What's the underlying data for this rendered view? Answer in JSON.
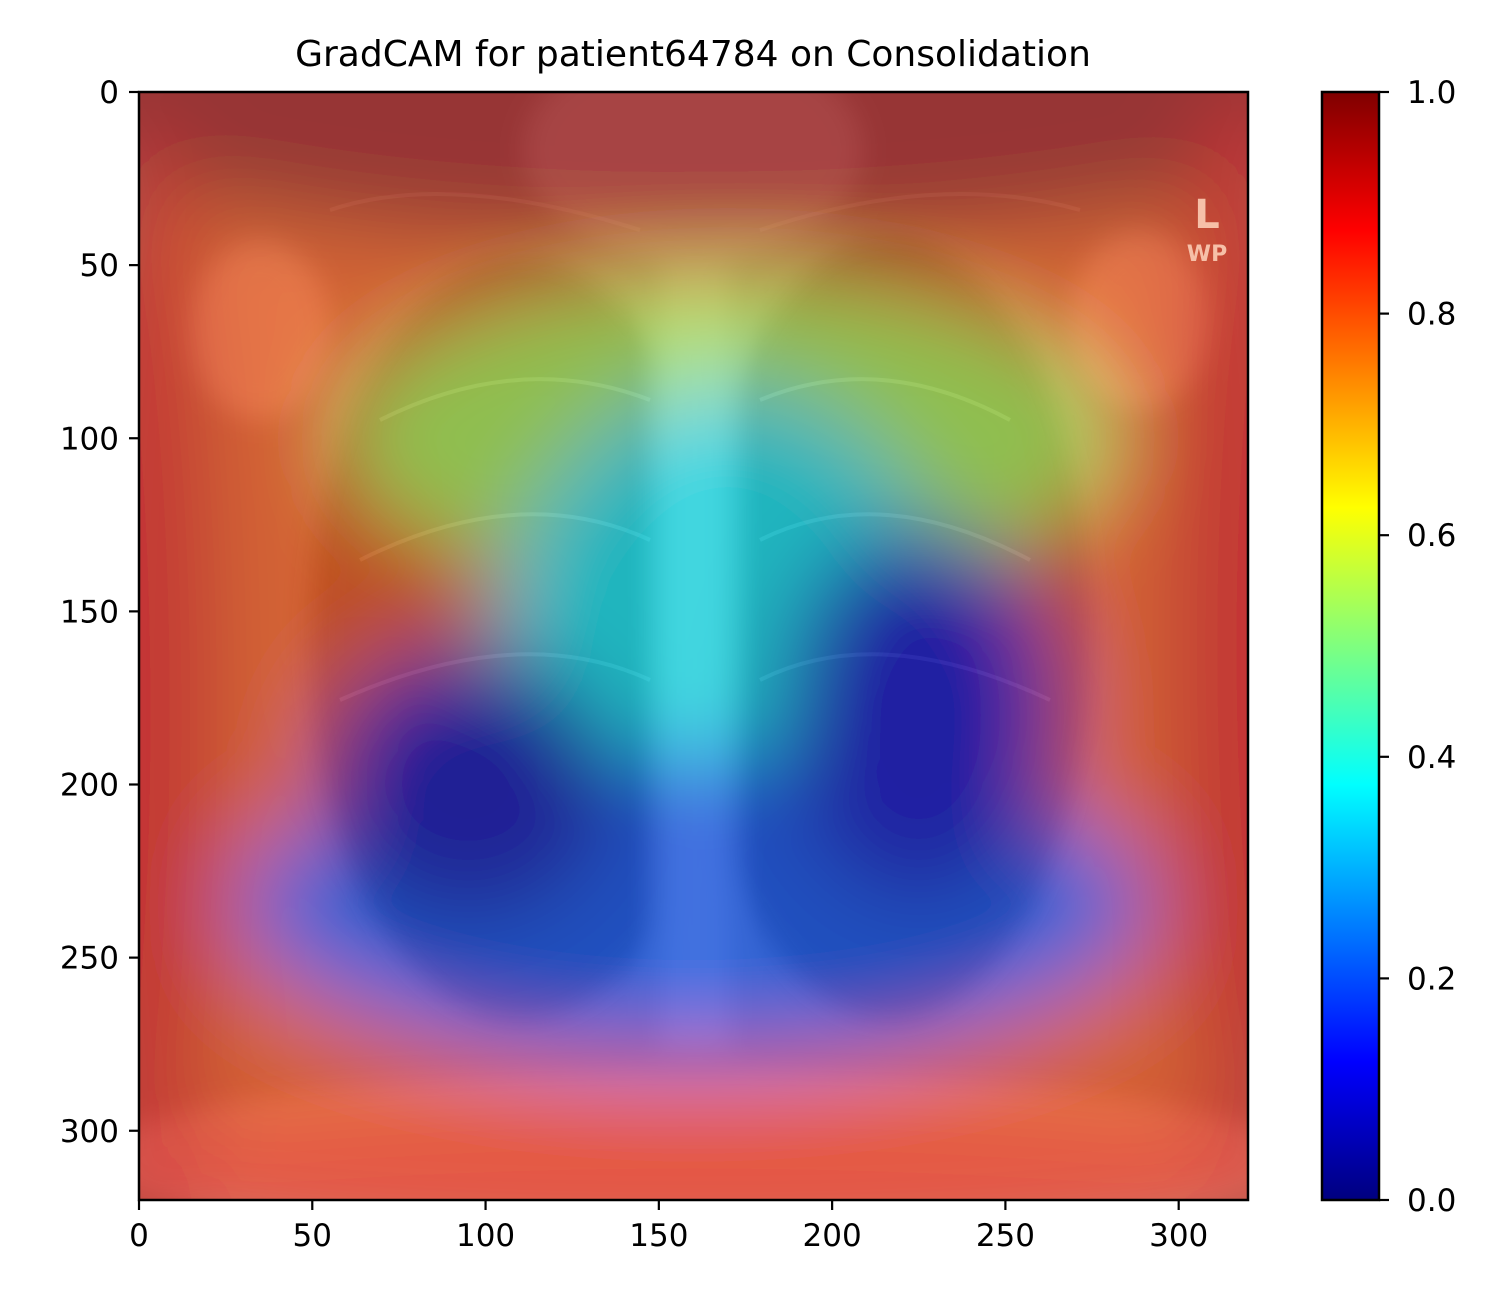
{
  "chart_data": {
    "type": "heatmap",
    "title": "GradCAM for patient64784 on Consolidation",
    "xlabel": "",
    "ylabel": "",
    "xlim": [
      0,
      320
    ],
    "ylim": [
      320,
      0
    ],
    "x_ticks": [
      0,
      50,
      100,
      150,
      200,
      250,
      300
    ],
    "y_ticks": [
      0,
      50,
      100,
      150,
      200,
      250,
      300
    ],
    "image_size": [
      320,
      320
    ],
    "colormap": "jet",
    "colorbar": {
      "ticks": [
        "0.0",
        "0.2",
        "0.4",
        "0.6",
        "0.8",
        "1.0"
      ],
      "range": [
        0.0,
        1.0
      ],
      "colors": [
        "#00007f",
        "#0000ff",
        "#007fff",
        "#00ffff",
        "#7fff7f",
        "#ffff00",
        "#ff7f00",
        "#ff0000",
        "#7f0000"
      ]
    },
    "image_text": [
      "L",
      "WP"
    ],
    "activation_regions": [
      {
        "name": "top-band",
        "x": 160,
        "y": 0,
        "rx": 200,
        "ry": 45,
        "value": 0.97
      },
      {
        "name": "bottom-band",
        "x": 160,
        "y": 315,
        "rx": 200,
        "ry": 25,
        "value": 0.85
      },
      {
        "name": "left-edge",
        "x": 0,
        "y": 180,
        "rx": 25,
        "ry": 170,
        "value": 0.9
      },
      {
        "name": "right-edge",
        "x": 320,
        "y": 160,
        "rx": 25,
        "ry": 160,
        "value": 0.9
      },
      {
        "name": "mid-upper",
        "x": 170,
        "y": 100,
        "rx": 110,
        "ry": 45,
        "value": 0.55
      },
      {
        "name": "center",
        "x": 170,
        "y": 175,
        "rx": 70,
        "ry": 90,
        "value": 0.36
      },
      {
        "name": "lower-lungs",
        "x": 160,
        "y": 235,
        "rx": 130,
        "ry": 45,
        "value": 0.2
      },
      {
        "name": "left-lung-core",
        "x": 95,
        "y": 200,
        "rx": 42,
        "ry": 40,
        "value": 0.06
      },
      {
        "name": "right-lung-core",
        "x": 225,
        "y": 180,
        "rx": 40,
        "ry": 55,
        "value": 0.08
      }
    ]
  }
}
